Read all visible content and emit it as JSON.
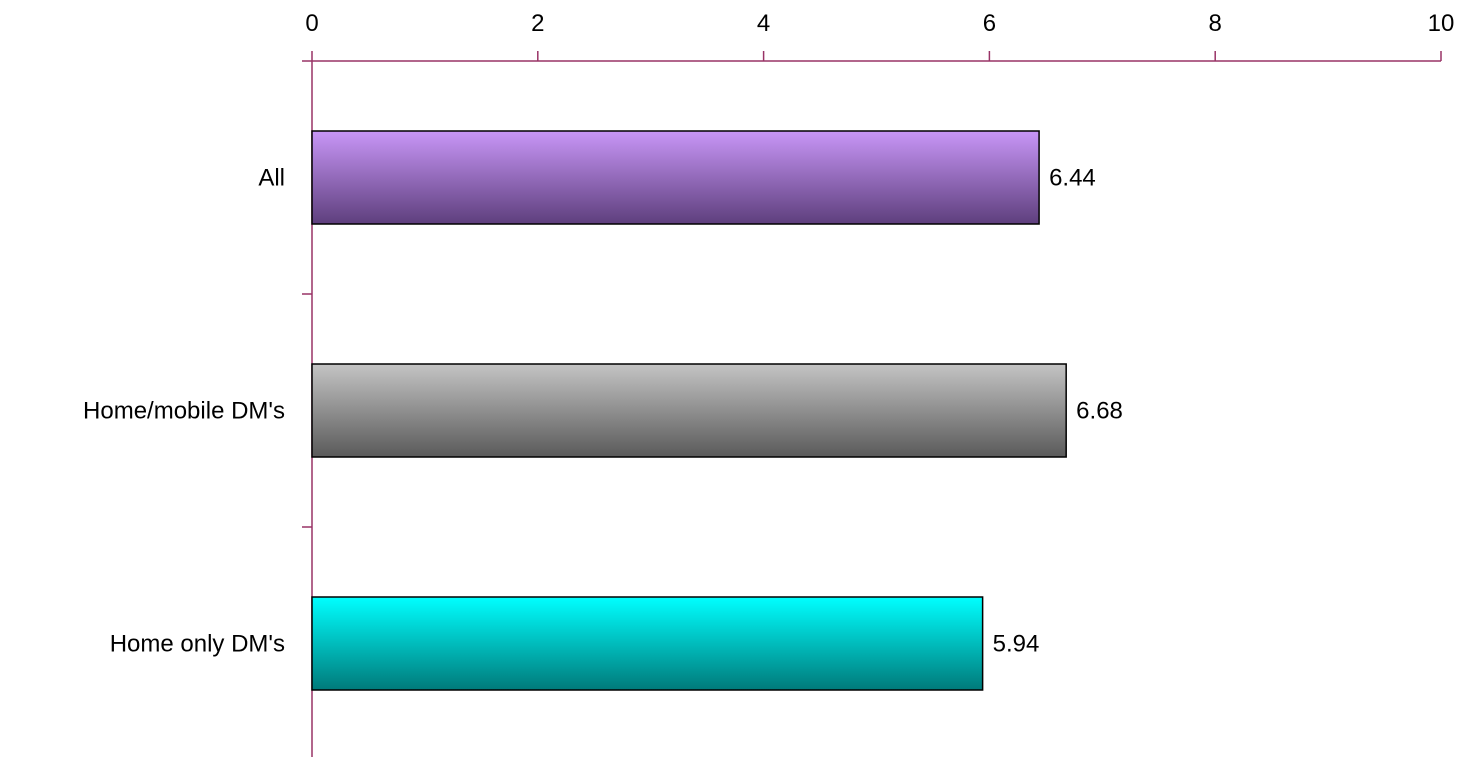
{
  "chart_data": {
    "type": "bar",
    "orientation": "horizontal",
    "categories": [
      "All",
      "Home/mobile DM's",
      "Home only DM's"
    ],
    "values": [
      6.44,
      6.68,
      5.94
    ],
    "value_labels": [
      "6.44",
      "6.68",
      "5.94"
    ],
    "xlim": [
      0,
      10
    ],
    "xticks": [
      0,
      2,
      4,
      6,
      8,
      10
    ],
    "xtick_labels": [
      "0",
      "2",
      "4",
      "6",
      "8",
      "10"
    ],
    "x_axis_position": "top",
    "grid": false,
    "legend": "none",
    "axis_color": "#993366",
    "bar_colors": [
      {
        "top": "#c896f7",
        "bottom": "#5e3f7d"
      },
      {
        "top": "#c4c4c4",
        "bottom": "#5a5a5a"
      },
      {
        "top": "#00ffff",
        "bottom": "#007a7a"
      }
    ],
    "bar_border_color": "#000000"
  }
}
